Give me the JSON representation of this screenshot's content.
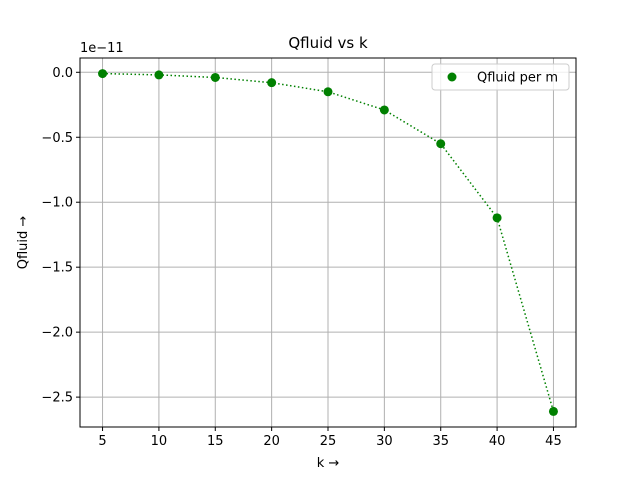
{
  "chart_data": {
    "type": "line",
    "title": "Qfluid vs k",
    "xlabel": "k →",
    "ylabel": "Qfluid →",
    "y_offset_label": "1e−11",
    "xlim": [
      3.0,
      47.0
    ],
    "ylim": [
      -2.73,
      0.11
    ],
    "x_ticks": [
      5,
      10,
      15,
      20,
      25,
      30,
      35,
      40,
      45
    ],
    "x_tick_labels": [
      "5",
      "10",
      "15",
      "20",
      "25",
      "30",
      "35",
      "40",
      "45"
    ],
    "y_ticks": [
      0.0,
      -0.5,
      -1.0,
      -1.5,
      -2.0,
      -2.5
    ],
    "y_tick_labels": [
      "0.0",
      "−0.5",
      "−1.0",
      "−1.5",
      "−2.0",
      "−2.5"
    ],
    "grid": true,
    "legend_position": "top-right",
    "series": [
      {
        "name": "Qfluid per m",
        "color": "#008000",
        "line_style": "dotted",
        "marker": "circle",
        "x": [
          5,
          10,
          15,
          20,
          25,
          30,
          35,
          40,
          45
        ],
        "y": [
          -0.01,
          -0.02,
          -0.04,
          -0.08,
          -0.15,
          -0.29,
          -0.55,
          -1.12,
          -2.61
        ]
      }
    ],
    "colors": {
      "grid": "#b0b0b0",
      "axis": "#000000",
      "series": "#008000"
    }
  }
}
